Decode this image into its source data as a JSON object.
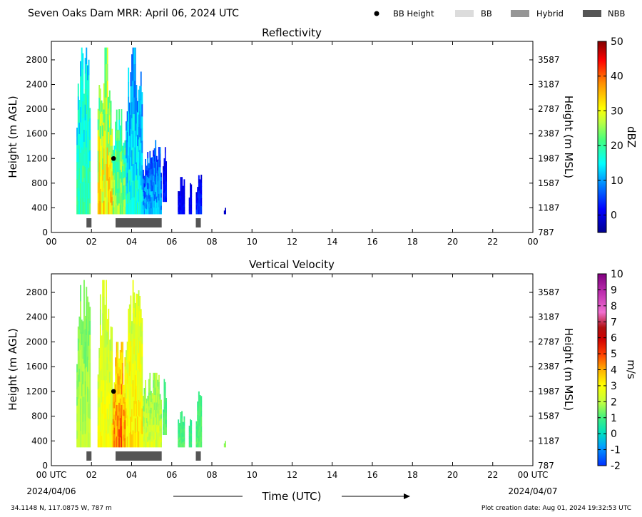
{
  "header": {
    "title": "Seven Oaks Dam MRR:  April 06, 2024 UTC",
    "legend": [
      {
        "label": "BB Height",
        "kind": "dot",
        "color": "#000000"
      },
      {
        "label": "BB",
        "kind": "box",
        "color": "#dcdcdc"
      },
      {
        "label": "Hybrid",
        "kind": "box",
        "color": "#969696"
      },
      {
        "label": "NBB",
        "kind": "box",
        "color": "#555555"
      }
    ]
  },
  "footer": {
    "xlabel": "Time (UTC)",
    "start_date": "2024/04/06",
    "end_date": "2024/04/07",
    "location": "34.1148 N, 117.0875 W, 787 m",
    "creation": "Plot creation date: Aug 01, 2024 19:32:53 UTC"
  },
  "chart_data": [
    {
      "type": "heatmap",
      "title": "Reflectivity",
      "ylabel": "Height (m AGL)",
      "ylabel_right": "Height (m MSL)",
      "xlim": [
        0,
        24
      ],
      "ylim": [
        0,
        3100
      ],
      "xticks": [
        "00",
        "02",
        "04",
        "06",
        "08",
        "10",
        "12",
        "14",
        "16",
        "18",
        "20",
        "22",
        "00"
      ],
      "yticks": [
        0,
        400,
        800,
        1200,
        1600,
        2000,
        2400,
        2800
      ],
      "yticks_right": [
        "787",
        "1187",
        "1587",
        "1987",
        "2387",
        "2787",
        "3187",
        "3587"
      ],
      "colorbar": {
        "label": "dBZ",
        "min": -5,
        "max": 50,
        "ticks": [
          0,
          10,
          20,
          30,
          40,
          50
        ]
      },
      "columns": [
        {
          "t0": 1.25,
          "t1": 1.95,
          "top": 3000,
          "bottom": 300,
          "low": 4,
          "high": 26
        },
        {
          "t0": 2.3,
          "t1": 3.05,
          "top": 3000,
          "bottom": 300,
          "low": 10,
          "high": 40
        },
        {
          "t0": 3.05,
          "t1": 3.7,
          "top": 2000,
          "bottom": 300,
          "low": 8,
          "high": 32
        },
        {
          "t0": 3.7,
          "t1": 4.55,
          "top": 3000,
          "bottom": 300,
          "low": 0,
          "high": 22
        },
        {
          "t0": 4.55,
          "t1": 5.5,
          "top": 1500,
          "bottom": 300,
          "low": -3,
          "high": 16
        },
        {
          "t0": 5.55,
          "t1": 5.75,
          "top": 1400,
          "bottom": 500,
          "low": -4,
          "high": 6
        },
        {
          "t0": 6.3,
          "t1": 6.65,
          "top": 900,
          "bottom": 300,
          "low": -4,
          "high": 4
        },
        {
          "t0": 6.85,
          "t1": 7.0,
          "top": 800,
          "bottom": 300,
          "low": -4,
          "high": 4
        },
        {
          "t0": 7.2,
          "t1": 7.5,
          "top": 950,
          "bottom": 300,
          "low": -4,
          "high": 6
        },
        {
          "t0": 8.6,
          "t1": 8.7,
          "top": 400,
          "bottom": 300,
          "low": -4,
          "high": 0
        }
      ],
      "bb_height": [
        {
          "t": 3.1,
          "h": 1200
        }
      ],
      "bb_bars": [
        {
          "t0": 1.75,
          "t1": 2.0,
          "type": "NBB"
        },
        {
          "t0": 3.2,
          "t1": 5.5,
          "type": "NBB"
        },
        {
          "t0": 7.2,
          "t1": 7.45,
          "type": "NBB"
        }
      ]
    },
    {
      "type": "heatmap",
      "title": "Vertical Velocity",
      "ylabel": "Height (m AGL)",
      "ylabel_right": "Height (m MSL)",
      "xlim": [
        0,
        24
      ],
      "ylim": [
        0,
        3100
      ],
      "xticks": [
        "00 UTC",
        "02",
        "04",
        "06",
        "08",
        "10",
        "12",
        "14",
        "16",
        "18",
        "20",
        "22",
        "00 UTC"
      ],
      "yticks": [
        0,
        400,
        800,
        1200,
        1600,
        2000,
        2400,
        2800
      ],
      "yticks_right": [
        "787",
        "1187",
        "1587",
        "1987",
        "2387",
        "2787",
        "3187",
        "3587"
      ],
      "colorbar": {
        "label": "m/s",
        "min": -2,
        "max": 10,
        "ticks": [
          -2,
          -1,
          0,
          1,
          2,
          3,
          4,
          5,
          6,
          7,
          8,
          9,
          10
        ]
      },
      "columns": [
        {
          "t0": 1.25,
          "t1": 1.95,
          "top": 3000,
          "bottom": 300,
          "low": 0.5,
          "high": 2.5
        },
        {
          "t0": 2.3,
          "t1": 3.05,
          "top": 3000,
          "bottom": 300,
          "low": 1,
          "high": 3.5
        },
        {
          "t0": 3.05,
          "t1": 3.7,
          "top": 2000,
          "bottom": 300,
          "low": 1.5,
          "high": 5.5
        },
        {
          "t0": 3.7,
          "t1": 4.55,
          "top": 3000,
          "bottom": 300,
          "low": 1,
          "high": 4
        },
        {
          "t0": 4.55,
          "t1": 5.5,
          "top": 1500,
          "bottom": 300,
          "low": 0.5,
          "high": 3
        },
        {
          "t0": 5.55,
          "t1": 5.75,
          "top": 1400,
          "bottom": 500,
          "low": 0.5,
          "high": 1.5
        },
        {
          "t0": 6.3,
          "t1": 6.65,
          "top": 900,
          "bottom": 300,
          "low": 0.3,
          "high": 1.5
        },
        {
          "t0": 6.85,
          "t1": 7.0,
          "top": 800,
          "bottom": 300,
          "low": 0.3,
          "high": 1.2
        },
        {
          "t0": 7.2,
          "t1": 7.5,
          "top": 1200,
          "bottom": 300,
          "low": 0.5,
          "high": 1.5
        },
        {
          "t0": 8.6,
          "t1": 8.7,
          "top": 400,
          "bottom": 300,
          "low": 1,
          "high": 2
        }
      ],
      "bb_height": [
        {
          "t": 3.1,
          "h": 1200
        }
      ],
      "bb_bars": [
        {
          "t0": 1.75,
          "t1": 2.0,
          "type": "NBB"
        },
        {
          "t0": 3.2,
          "t1": 5.5,
          "type": "NBB"
        },
        {
          "t0": 7.2,
          "t1": 7.45,
          "type": "NBB"
        }
      ]
    }
  ]
}
